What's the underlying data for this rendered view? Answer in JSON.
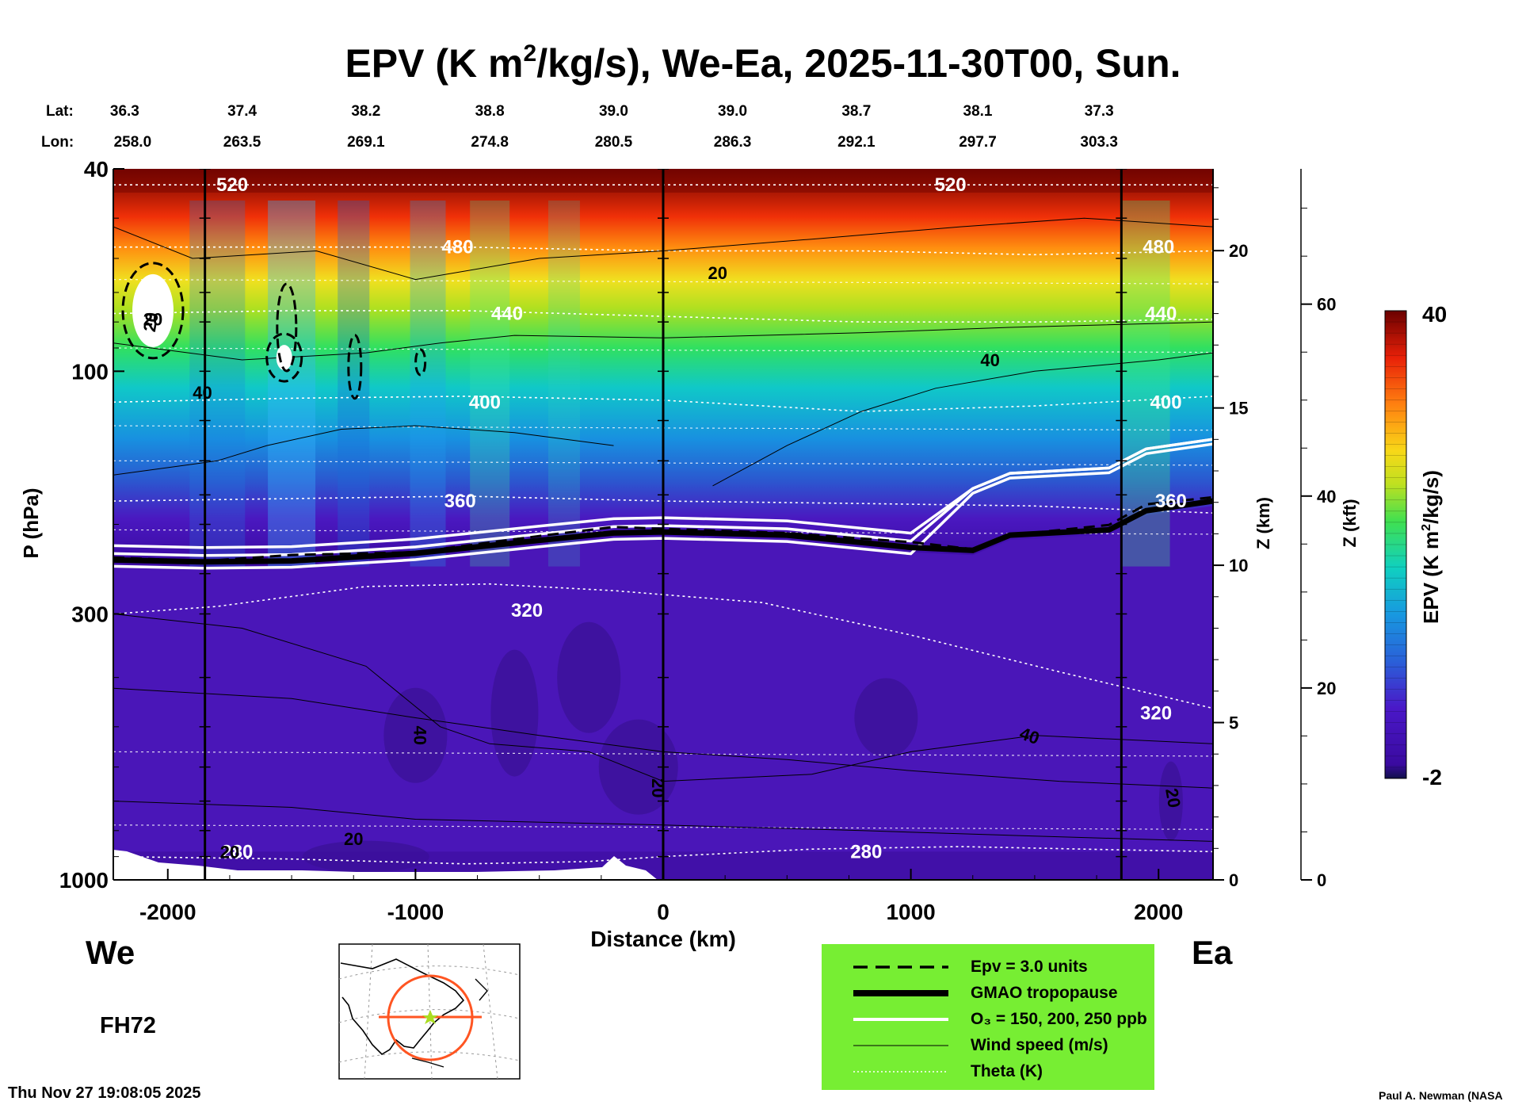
{
  "chart_data": {
    "type": "heatmap",
    "title": "EPV (K m²/kg/s), We-Ea, 2025-11-30T00, Sun.",
    "title_parts": {
      "pre": "EPV (K m",
      "sup": "2",
      "post": "/kg/s), We-Ea, 2025-11-30T00, Sun."
    },
    "xlabel": "Distance (km)",
    "ylabel": "P (hPa)",
    "xlim": [
      -2220,
      2220
    ],
    "ylim_hpa": [
      1000,
      40
    ],
    "x_ticks": [
      -2000,
      -1000,
      0,
      1000,
      2000
    ],
    "y_ticks": [
      40,
      100,
      300,
      1000
    ],
    "z_km_label": "Z (km)",
    "z_km_ticks": [
      0,
      5,
      10,
      15,
      20
    ],
    "z_kft_label": "Z (kft)",
    "z_kft_ticks": [
      0,
      20,
      40,
      60
    ],
    "lat_label": "Lat:",
    "lon_label": "Lon:",
    "lats": [
      "36.3",
      "37.4",
      "38.2",
      "38.8",
      "39.0",
      "39.0",
      "38.7",
      "38.1",
      "37.3"
    ],
    "lons": [
      "258.0",
      "263.5",
      "269.1",
      "274.8",
      "280.5",
      "286.3",
      "292.1",
      "297.7",
      "303.3"
    ],
    "vertical_lines_km": [
      -1850,
      0,
      1850
    ],
    "colorbar": {
      "label": "EPV (K m²/kg/s)",
      "label_pre": "EPV (K m",
      "label_sup": "2",
      "label_post": "/kg/s)",
      "max": "40",
      "min": "-2"
    },
    "theta_contours": [
      {
        "label": "280",
        "hpa": 880
      },
      {
        "label": "320",
        "hpa": 295
      },
      {
        "label": "360",
        "hpa": 180
      },
      {
        "label": "400",
        "hpa": 115
      },
      {
        "label": "440",
        "hpa": 77
      },
      {
        "label": "480",
        "hpa": 57
      },
      {
        "label": "520",
        "hpa": 43
      }
    ],
    "wind_labels": [
      "20",
      "40",
      "20",
      "40",
      "40",
      "20",
      "20",
      "40",
      "20",
      "20",
      "20"
    ],
    "tropopause_hpa": [
      [
        -2220,
        235
      ],
      [
        -1850,
        237
      ],
      [
        -1500,
        236
      ],
      [
        -1000,
        228
      ],
      [
        -500,
        215
      ],
      [
        -200,
        208
      ],
      [
        0,
        207
      ],
      [
        500,
        210
      ],
      [
        1000,
        222
      ],
      [
        1250,
        225
      ],
      [
        1400,
        210
      ],
      [
        1800,
        205
      ],
      [
        1950,
        188
      ],
      [
        2220,
        180
      ]
    ]
  },
  "legend": {
    "items": [
      {
        "label": "Epv = 3.0 units",
        "style": "dashed"
      },
      {
        "label": "GMAO tropopause",
        "style": "thick"
      },
      {
        "label": "O₃ = 150, 200, 250 ppb",
        "style": "white"
      },
      {
        "label": "Wind speed (m/s)",
        "style": "thin"
      },
      {
        "label": "Theta (K)",
        "style": "dotted"
      }
    ],
    "colors": {
      "background": "#77ee33"
    }
  },
  "side_labels": {
    "left": "We",
    "right": "Ea"
  },
  "forecast_hour": "FH72",
  "footer": {
    "timestamp": "Thu Nov 27 19:08:05 2025",
    "credit": "Paul A. Newman (NASA"
  }
}
